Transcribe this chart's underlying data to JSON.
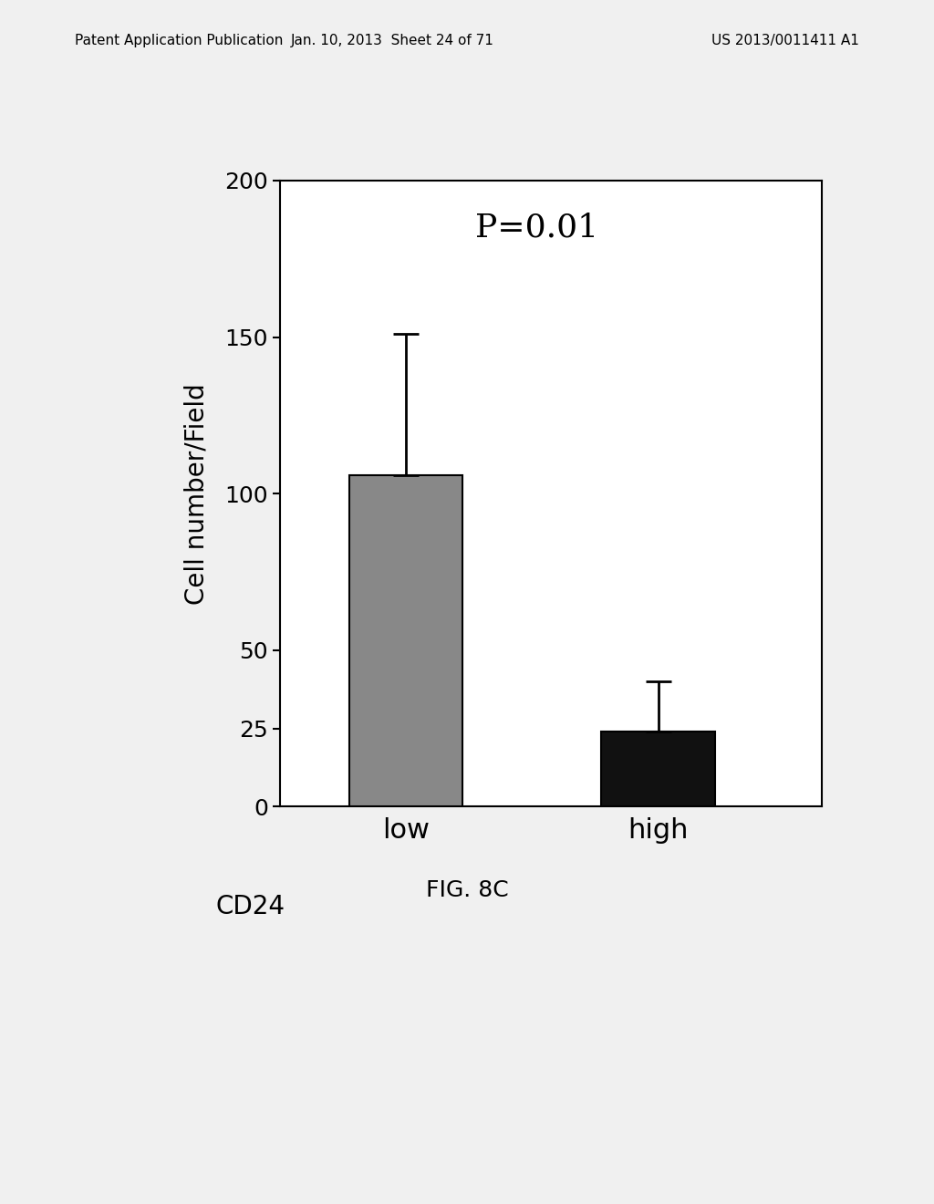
{
  "categories": [
    "low",
    "high"
  ],
  "values": [
    106,
    24
  ],
  "errors_upper": [
    45,
    16
  ],
  "errors_lower": [
    0,
    0
  ],
  "bar_colors": [
    "#888888",
    "#111111"
  ],
  "bar_width": 0.45,
  "ylim": [
    0,
    200
  ],
  "yticks": [
    0,
    25,
    50,
    100,
    150,
    200
  ],
  "ylabel": "Cell number/Field",
  "xlabel_prefix": "CD24",
  "annotation": "P=0.01",
  "annotation_fontsize": 26,
  "ylabel_fontsize": 20,
  "tick_fontsize": 18,
  "xlabel_fontsize": 22,
  "cd24_fontsize": 20,
  "figure_title": "FIG. 8C",
  "figure_title_fontsize": 18,
  "background_color": "#f0f0f0",
  "plot_bg_color": "#ffffff",
  "header_left": "Patent Application Publication",
  "header_mid": "Jan. 10, 2013  Sheet 24 of 71",
  "header_right": "US 2013/0011411 A1",
  "header_fontsize": 11
}
